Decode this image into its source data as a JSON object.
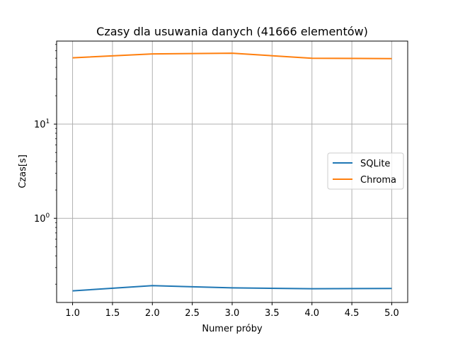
{
  "chart_data": {
    "type": "line",
    "title": "Czasy dla usuwania danych (41666 elementów)",
    "xlabel": "Numer próby",
    "ylabel": "Czas[s]",
    "yscale": "log",
    "xlim": [
      0.8,
      5.2
    ],
    "ylim": [
      0.128,
      76
    ],
    "x": [
      1.0,
      2.0,
      3.0,
      4.0,
      5.0
    ],
    "xticks": [
      1.0,
      1.5,
      2.0,
      2.5,
      3.0,
      3.5,
      4.0,
      4.5,
      5.0
    ],
    "xtick_labels": [
      "1.0",
      "1.5",
      "2.0",
      "2.5",
      "3.0",
      "3.5",
      "4.0",
      "4.5",
      "5.0"
    ],
    "yticks": [
      {
        "value": 1,
        "base": "10",
        "exp": "0"
      },
      {
        "value": 10,
        "base": "10",
        "exp": "1"
      }
    ],
    "grid": true,
    "legend_position": "center-right",
    "series": [
      {
        "name": "SQLite",
        "color": "#1f77b4",
        "values": [
          0.17,
          0.193,
          0.183,
          0.179,
          0.18
        ]
      },
      {
        "name": "Chroma",
        "color": "#ff7f0e",
        "values": [
          50.5,
          55.5,
          56.5,
          50.0,
          49.5
        ]
      }
    ]
  }
}
